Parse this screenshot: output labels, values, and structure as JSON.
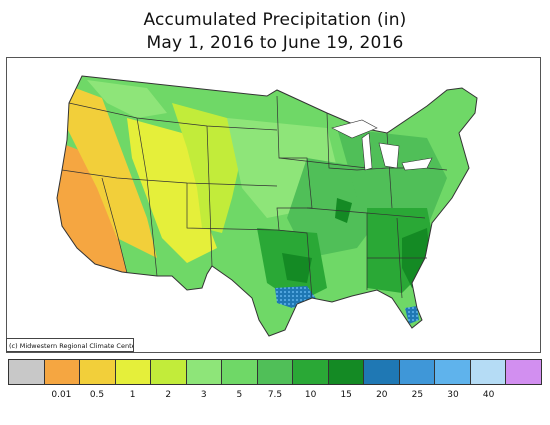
{
  "title": {
    "line1": "Accumulated Precipitation (in)",
    "line2": "May 1, 2016 to June 19, 2016"
  },
  "credit": "(c) Midwestern Regional Climate Center",
  "legend": {
    "colors": [
      "#c8c8c8",
      "#f5a641",
      "#f2cf3a",
      "#e5ef3a",
      "#c2ec3a",
      "#8ee579",
      "#6fd867",
      "#50bf58",
      "#2aa836",
      "#148a24",
      "#1f78b4",
      "#3f97d8",
      "#5fb3ec",
      "#b5dcf5",
      "#d28ff0"
    ],
    "labels": [
      "0.01",
      "0.5",
      "1",
      "2",
      "3",
      "5",
      "7.5",
      "10",
      "15",
      "20",
      "25",
      "30",
      "40"
    ]
  }
}
